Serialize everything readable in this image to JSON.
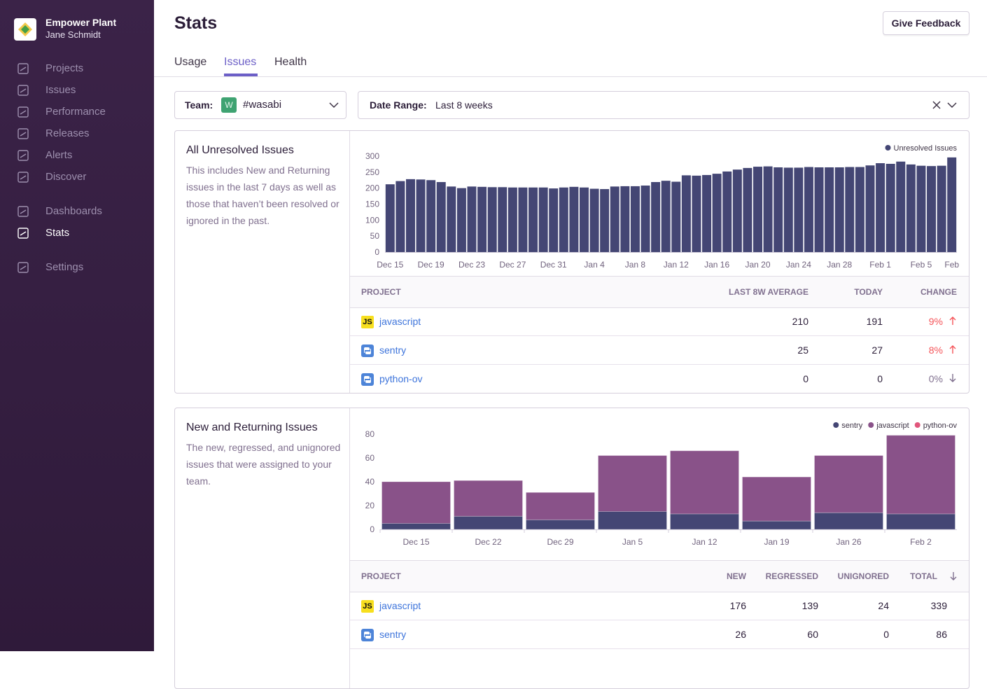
{
  "sidebar": {
    "org": "Empower Plant",
    "user": "Jane Schmidt",
    "nav": [
      "Projects",
      "Issues",
      "Performance",
      "Releases",
      "Alerts",
      "Discover",
      "Dashboards",
      "Stats",
      "Settings"
    ]
  },
  "header": {
    "title": "Stats",
    "feedback": "Give Feedback",
    "tabs": [
      "Usage",
      "Issues",
      "Health"
    ]
  },
  "filters": {
    "team_label": "Team:",
    "team_badge": "W",
    "team": "#wasabi",
    "date_label": "Date Range:",
    "date": "Last 8 weeks"
  },
  "panels": [
    {
      "title": "All Unresolved Issues",
      "description": "This includes New and Returning issues in the last 7 days as well as those that haven’t been resolved or ignored in the past.",
      "chart_data": {
        "type": "bar",
        "stacked": false,
        "grid": false,
        "legend": "top-right",
        "categories": [
          "Dec 15",
          null,
          null,
          null,
          "Dec 19",
          null,
          null,
          null,
          "Dec 23",
          null,
          null,
          null,
          "Dec 27",
          null,
          null,
          null,
          "Dec 31",
          null,
          null,
          null,
          "Jan 4",
          null,
          null,
          null,
          "Jan 8",
          null,
          null,
          null,
          "Jan 12",
          null,
          null,
          null,
          "Jan 16",
          null,
          null,
          null,
          "Jan 20",
          null,
          null,
          null,
          "Jan 24",
          null,
          null,
          null,
          "Jan 28",
          null,
          null,
          null,
          "Feb 1",
          null,
          null,
          null,
          "Feb 5",
          null,
          null,
          "Feb"
        ],
        "series": [
          {
            "name": "Unresolved Issues",
            "color": "#444674",
            "values": [
              212,
              222,
              228,
              227,
              225,
              219,
              205,
              200,
              205,
              204,
              203,
              203,
              202,
              202,
              202,
              202,
              199,
              202,
              204,
              202,
              198,
              197,
              205,
              206,
              206,
              208,
              219,
              223,
              220,
              240,
              239,
              241,
              245,
              252,
              258,
              263,
              267,
              268,
              265,
              264,
              264,
              266,
              265,
              265,
              265,
              266,
              266,
              271,
              278,
              276,
              283,
              274,
              270,
              269,
              270,
              296
            ]
          }
        ],
        "ylim": [
          0,
          300
        ],
        "yticks": [
          0,
          50,
          100,
          150,
          200,
          250,
          300
        ]
      },
      "table": {
        "headers": [
          "PROJECT",
          "LAST 8W AVERAGE",
          "TODAY",
          "CHANGE"
        ],
        "rows": [
          {
            "icon": "JS",
            "project": "javascript",
            "cells": [
              210,
              191,
              "9%"
            ],
            "trend": "up"
          },
          {
            "project": "sentry",
            "cells": [
              25,
              27,
              "8%"
            ],
            "trend": "up"
          },
          {
            "project": "python-ov",
            "cells": [
              0,
              0,
              "0%"
            ],
            "trend": "down"
          }
        ]
      }
    },
    {
      "title": "New and Returning Issues",
      "description": "The new, regressed, and unignored issues that were assigned to your team.",
      "chart_data": {
        "type": "bar",
        "stacked": true,
        "grid": false,
        "legend": "top-right",
        "categories": [
          "Dec 15",
          "Dec 22",
          "Dec 29",
          "Jan 5",
          "Jan 12",
          "Jan 19",
          "Jan 26",
          "Feb 2"
        ],
        "series": [
          {
            "name": "sentry",
            "color": "#444674",
            "values": [
              5,
              11,
              8,
              15,
              13,
              7,
              14,
              13
            ]
          },
          {
            "name": "javascript",
            "color": "#895289",
            "values": [
              35,
              30,
              23,
              47,
              53,
              37,
              48,
              66
            ]
          },
          {
            "name": "python-ov",
            "color": "#e1567c",
            "values": [
              0,
              0,
              0,
              0,
              0,
              0,
              0,
              0
            ]
          }
        ],
        "ylim": [
          0,
          80
        ],
        "yticks": [
          0,
          20,
          40,
          60,
          80
        ]
      },
      "table": {
        "headers": [
          "PROJECT",
          "NEW",
          "REGRESSED",
          "UNIGNORED",
          "TOTAL"
        ],
        "rows": [
          {
            "icon": "JS",
            "project": "javascript",
            "cells": [
              176,
              139,
              24,
              339
            ]
          },
          {
            "project": "sentry",
            "cells": [
              26,
              60,
              0,
              86
            ]
          }
        ]
      }
    }
  ]
}
